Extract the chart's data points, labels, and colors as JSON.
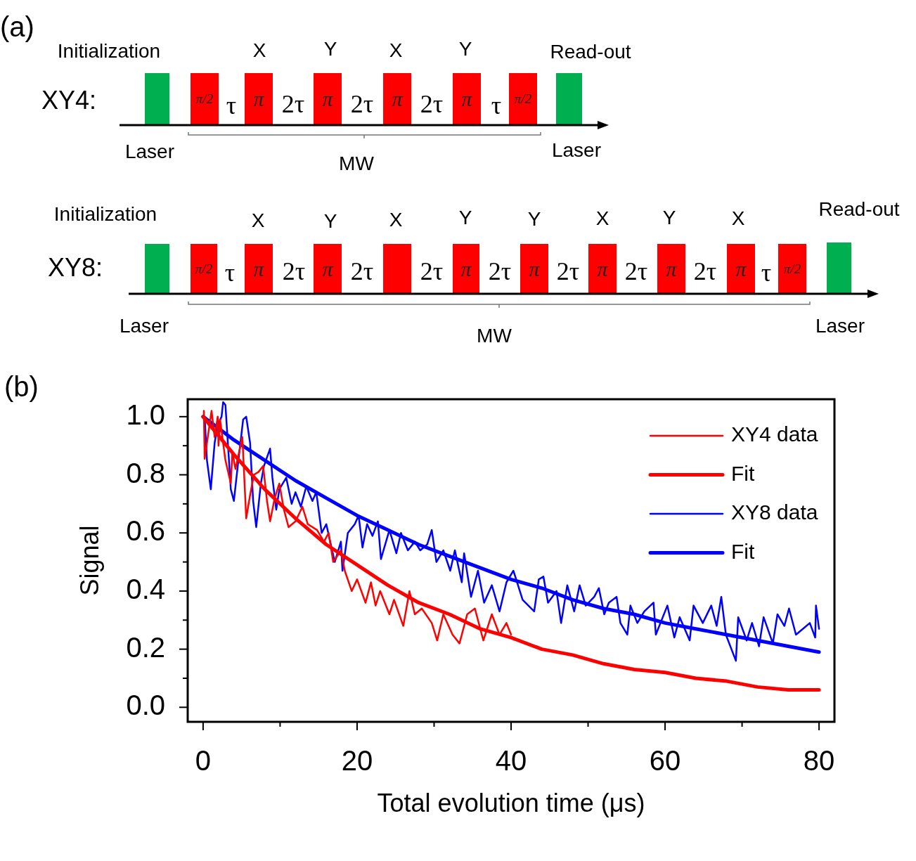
{
  "chart_data": [
    {
      "type": "other",
      "title": "(a)",
      "annotations": [
        "Initialization",
        "X",
        "Y",
        "X",
        "Y",
        "Read-out",
        "XY4:",
        "π/2",
        "τ",
        "π",
        "2τ",
        "π",
        "2τ",
        "π",
        "2τ",
        "π",
        "τ",
        "π/2",
        "Laser",
        "MW",
        "Laser",
        "Initialization",
        "X",
        "Y",
        "X",
        "Y",
        "Y",
        "X",
        "Y",
        "X",
        "Read-out",
        "XY8:",
        "π/2",
        "τ",
        "π",
        "2τ",
        "π",
        "2τ",
        "2τ",
        "π",
        "2τ",
        "π",
        "2τ",
        "π",
        "2τ",
        "π",
        "2τ",
        "π",
        "τ",
        "π/2",
        "Laser",
        "MW",
        "Laser"
      ]
    },
    {
      "type": "line",
      "title": "(b)",
      "xlabel": "Total evolution time (μs)",
      "ylabel": "Signal",
      "xlim": [
        -2,
        82
      ],
      "ylim": [
        -0.05,
        1.06
      ],
      "xticks": [
        0,
        {
          "value": 10,
          "label": null
        },
        20,
        {
          "value": 30,
          "label": null
        },
        40,
        {
          "value": 50,
          "label": null
        },
        60,
        {
          "value": 70,
          "label": null
        },
        80
      ],
      "yticks": [
        {
          "value": 0,
          "label": "0.0"
        },
        {
          "value": 0.1,
          "label": null
        },
        {
          "value": 0.2,
          "label": "0.2"
        },
        {
          "value": 0.3,
          "label": null
        },
        {
          "value": 0.4,
          "label": "0.4"
        },
        {
          "value": 0.5,
          "label": null
        },
        {
          "value": 0.6,
          "label": "0.6"
        },
        {
          "value": 0.7,
          "label": null
        },
        {
          "value": 0.8,
          "label": "0.8"
        },
        {
          "value": 0.9,
          "label": null
        },
        {
          "value": 1,
          "label": "1.0"
        }
      ],
      "legend": "top right",
      "marker": "none",
      "series": [
        {
          "name": "XY4 data",
          "color": "#ff0000",
          "x": [
            0.1,
            0.2,
            0.5,
            1.1,
            1.5,
            1.9,
            2.0,
            2.2,
            2.9,
            3.6,
            3.8,
            4.2,
            5.1,
            5.6,
            6.1,
            6.6,
            7.2,
            7.8,
            8.3,
            8.7,
            9.3,
            9.9,
            10.5,
            11.1,
            12.0,
            12.9,
            13.6,
            14.8,
            15.7,
            16.3,
            16.9,
            17.9,
            18.4,
            19.3,
            20.0,
            21.1,
            21.8,
            22.4,
            23.0,
            24.2,
            24.8,
            26.0,
            26.8,
            27.5,
            28.4,
            29.7,
            30.4,
            31.2,
            32.4,
            33.3,
            34.3,
            35.3,
            36.4,
            37.5,
            38.5,
            39.4,
            40.0
          ],
          "values": [
            1.02,
            0.855,
            0.91,
            1.02,
            0.93,
            1.0,
            0.9,
            0.99,
            0.85,
            0.77,
            0.88,
            0.82,
            0.93,
            0.65,
            0.73,
            0.8,
            0.81,
            0.83,
            0.71,
            0.64,
            0.72,
            0.77,
            0.68,
            0.62,
            0.64,
            0.69,
            0.63,
            0.61,
            0.57,
            0.6,
            0.5,
            0.54,
            0.47,
            0.4,
            0.44,
            0.36,
            0.43,
            0.35,
            0.4,
            0.32,
            0.37,
            0.28,
            0.4,
            0.32,
            0.34,
            0.29,
            0.23,
            0.32,
            0.25,
            0.22,
            0.32,
            0.34,
            0.23,
            0.32,
            0.25,
            0.29,
            0.25
          ]
        },
        {
          "name": "Fit",
          "color": "#ff0000",
          "x": [
            0,
            4,
            8,
            12,
            16,
            20,
            24,
            28,
            32,
            36,
            40,
            44,
            48,
            52,
            56,
            60,
            64,
            68,
            72,
            76,
            80
          ],
          "values": [
            1.0,
            0.87,
            0.75,
            0.65,
            0.56,
            0.49,
            0.42,
            0.36,
            0.32,
            0.27,
            0.24,
            0.2,
            0.18,
            0.15,
            0.13,
            0.12,
            0.1,
            0.09,
            0.07,
            0.06,
            0.06
          ]
        },
        {
          "name": "XY8 data",
          "color": "#0000ff",
          "x": [
            0.2,
            0.5,
            1.0,
            1.5,
            1.9,
            2.4,
            2.6,
            2.9,
            3.6,
            4.0,
            4.5,
            5.2,
            5.6,
            6.1,
            6.5,
            6.9,
            7.5,
            7.9,
            8.3,
            8.7,
            9.0,
            9.5,
            9.9,
            10.8,
            11.5,
            12.0,
            12.7,
            13.4,
            14.2,
            14.7,
            15.4,
            16.0,
            17.1,
            17.9,
            18.1,
            18.8,
            19.7,
            20.2,
            20.7,
            21.3,
            22.0,
            22.7,
            23.1,
            24.2,
            25.1,
            25.7,
            26.6,
            27.5,
            28.2,
            29.1,
            29.7,
            30.3,
            31.2,
            32.1,
            32.7,
            33.6,
            33.9,
            34.8,
            35.7,
            36.5,
            37.5,
            38.5,
            39.4,
            40.3,
            41.5,
            43.0,
            43.6,
            44.2,
            44.8,
            45.9,
            46.5,
            47.3,
            48.2,
            48.9,
            49.7,
            50.8,
            51.4,
            52.1,
            52.7,
            53.7,
            54.2,
            55.1,
            55.5,
            56.4,
            57.3,
            58.5,
            58.8,
            60.3,
            61.2,
            61.9,
            63.2,
            63.7,
            64.9,
            66.0,
            66.7,
            67.3,
            67.9,
            69.2,
            69.5,
            70.6,
            71.3,
            72.2,
            72.8,
            74.0,
            74.6,
            75.5,
            76.1,
            77.0,
            77.9,
            78.8,
            79.5,
            79.6,
            80.0
          ],
          "values": [
            1.0,
            0.85,
            0.75,
            0.91,
            0.97,
            1.0,
            1.05,
            1.04,
            0.75,
            0.71,
            0.83,
            0.99,
            1.0,
            0.91,
            0.71,
            0.62,
            0.77,
            0.83,
            0.86,
            0.89,
            0.79,
            0.68,
            0.75,
            0.79,
            0.7,
            0.74,
            0.69,
            0.76,
            0.71,
            0.74,
            0.6,
            0.63,
            0.5,
            0.57,
            0.47,
            0.6,
            0.63,
            0.66,
            0.55,
            0.63,
            0.59,
            0.64,
            0.51,
            0.61,
            0.53,
            0.6,
            0.54,
            0.57,
            0.54,
            0.56,
            0.61,
            0.5,
            0.54,
            0.47,
            0.54,
            0.43,
            0.53,
            0.38,
            0.47,
            0.36,
            0.42,
            0.33,
            0.43,
            0.47,
            0.37,
            0.33,
            0.44,
            0.45,
            0.36,
            0.4,
            0.29,
            0.42,
            0.33,
            0.42,
            0.35,
            0.38,
            0.41,
            0.32,
            0.36,
            0.38,
            0.29,
            0.25,
            0.35,
            0.29,
            0.33,
            0.36,
            0.25,
            0.35,
            0.24,
            0.31,
            0.23,
            0.35,
            0.29,
            0.35,
            0.28,
            0.38,
            0.25,
            0.16,
            0.31,
            0.23,
            0.29,
            0.21,
            0.31,
            0.22,
            0.32,
            0.28,
            0.34,
            0.25,
            0.27,
            0.29,
            0.24,
            0.35,
            0.27
          ]
        },
        {
          "name": "Fit",
          "color": "#0000ff",
          "x": [
            0,
            4,
            8,
            12,
            16,
            20,
            24,
            28,
            32,
            36,
            40,
            44,
            48,
            52,
            56,
            60,
            64,
            68,
            72,
            76,
            80
          ],
          "values": [
            1.0,
            0.92,
            0.85,
            0.78,
            0.72,
            0.66,
            0.61,
            0.56,
            0.52,
            0.48,
            0.44,
            0.41,
            0.37,
            0.34,
            0.32,
            0.29,
            0.27,
            0.25,
            0.23,
            0.21,
            0.19
          ]
        }
      ]
    }
  ]
}
